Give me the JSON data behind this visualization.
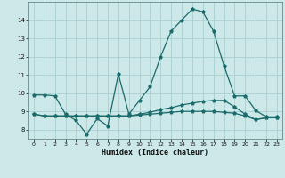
{
  "xlabel": "Humidex (Indice chaleur)",
  "bg_color": "#cce8e8",
  "grid_color": "#aacece",
  "line_color": "#1a6b6b",
  "xlim": [
    -0.5,
    23.5
  ],
  "ylim": [
    7.5,
    15.0
  ],
  "yticks": [
    8,
    9,
    10,
    11,
    12,
    13,
    14
  ],
  "xticks": [
    0,
    1,
    2,
    3,
    4,
    5,
    6,
    7,
    8,
    9,
    10,
    11,
    12,
    13,
    14,
    15,
    16,
    17,
    18,
    19,
    20,
    21,
    22,
    23
  ],
  "line1_x": [
    0,
    1,
    2,
    3,
    4,
    5,
    6,
    7,
    8,
    9,
    10,
    11,
    12,
    13,
    14,
    15,
    16,
    17,
    18,
    19,
    20,
    21,
    22,
    23
  ],
  "line1_y": [
    9.9,
    9.9,
    9.85,
    8.85,
    8.5,
    7.75,
    8.6,
    8.2,
    11.05,
    8.85,
    9.6,
    10.35,
    12.0,
    13.4,
    14.0,
    14.6,
    14.45,
    13.4,
    11.5,
    9.85,
    9.85,
    9.05,
    8.7,
    8.7
  ],
  "line2_x": [
    0,
    1,
    2,
    3,
    4,
    5,
    6,
    7,
    8,
    9,
    10,
    11,
    12,
    13,
    14,
    15,
    16,
    17,
    18,
    19,
    20,
    21,
    22,
    23
  ],
  "line2_y": [
    8.85,
    8.75,
    8.75,
    8.75,
    8.75,
    8.75,
    8.75,
    8.75,
    8.75,
    8.75,
    8.85,
    8.95,
    9.1,
    9.2,
    9.35,
    9.45,
    9.55,
    9.6,
    9.6,
    9.25,
    8.85,
    8.55,
    8.65,
    8.65
  ],
  "line3_x": [
    0,
    1,
    2,
    3,
    4,
    5,
    6,
    7,
    8,
    9,
    10,
    11,
    12,
    13,
    14,
    15,
    16,
    17,
    18,
    19,
    20,
    21,
    22,
    23
  ],
  "line3_y": [
    8.85,
    8.75,
    8.75,
    8.75,
    8.75,
    8.75,
    8.75,
    8.75,
    8.75,
    8.75,
    8.8,
    8.85,
    8.9,
    8.95,
    9.0,
    9.0,
    9.0,
    9.0,
    8.95,
    8.9,
    8.75,
    8.55,
    8.65,
    8.65
  ]
}
